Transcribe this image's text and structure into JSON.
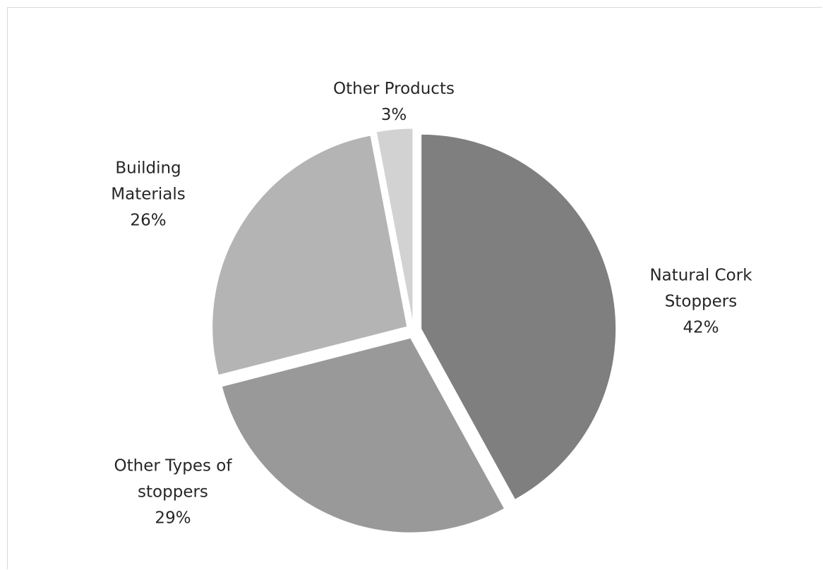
{
  "chart_data": {
    "type": "pie",
    "title": "",
    "start": "12 o'clock",
    "direction": "clockwise",
    "exploded": true,
    "slices": [
      {
        "label_lines": [
          "Natural Cork",
          "Stoppers"
        ],
        "value_label": "42%",
        "value": 42,
        "color": "#7f7f7f"
      },
      {
        "label_lines": [
          "Other Types of",
          "stoppers"
        ],
        "value_label": "29%",
        "value": 29,
        "color": "#999999"
      },
      {
        "label_lines": [
          "Building",
          "Materials"
        ],
        "value_label": "26%",
        "value": 26,
        "color": "#b4b4b4"
      },
      {
        "label_lines": [
          "Other Products"
        ],
        "value_label": "3%",
        "value": 3,
        "color": "#d2d2d2"
      }
    ]
  }
}
